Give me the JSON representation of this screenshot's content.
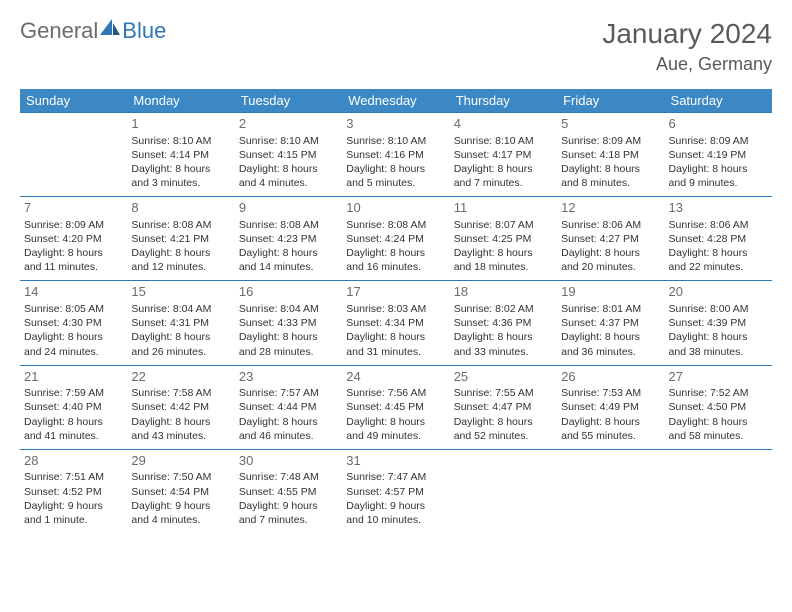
{
  "brand": {
    "part1": "General",
    "part2": "Blue"
  },
  "title": "January 2024",
  "location": "Aue, Germany",
  "colors": {
    "header_bg": "#3b88c4",
    "border": "#2f77b5",
    "text": "#333333",
    "muted": "#6b6b6b",
    "white": "#ffffff"
  },
  "weekdays": [
    "Sunday",
    "Monday",
    "Tuesday",
    "Wednesday",
    "Thursday",
    "Friday",
    "Saturday"
  ],
  "weeks": [
    [
      null,
      {
        "n": "1",
        "sr": "Sunrise: 8:10 AM",
        "ss": "Sunset: 4:14 PM",
        "d1": "Daylight: 8 hours",
        "d2": "and 3 minutes."
      },
      {
        "n": "2",
        "sr": "Sunrise: 8:10 AM",
        "ss": "Sunset: 4:15 PM",
        "d1": "Daylight: 8 hours",
        "d2": "and 4 minutes."
      },
      {
        "n": "3",
        "sr": "Sunrise: 8:10 AM",
        "ss": "Sunset: 4:16 PM",
        "d1": "Daylight: 8 hours",
        "d2": "and 5 minutes."
      },
      {
        "n": "4",
        "sr": "Sunrise: 8:10 AM",
        "ss": "Sunset: 4:17 PM",
        "d1": "Daylight: 8 hours",
        "d2": "and 7 minutes."
      },
      {
        "n": "5",
        "sr": "Sunrise: 8:09 AM",
        "ss": "Sunset: 4:18 PM",
        "d1": "Daylight: 8 hours",
        "d2": "and 8 minutes."
      },
      {
        "n": "6",
        "sr": "Sunrise: 8:09 AM",
        "ss": "Sunset: 4:19 PM",
        "d1": "Daylight: 8 hours",
        "d2": "and 9 minutes."
      }
    ],
    [
      {
        "n": "7",
        "sr": "Sunrise: 8:09 AM",
        "ss": "Sunset: 4:20 PM",
        "d1": "Daylight: 8 hours",
        "d2": "and 11 minutes."
      },
      {
        "n": "8",
        "sr": "Sunrise: 8:08 AM",
        "ss": "Sunset: 4:21 PM",
        "d1": "Daylight: 8 hours",
        "d2": "and 12 minutes."
      },
      {
        "n": "9",
        "sr": "Sunrise: 8:08 AM",
        "ss": "Sunset: 4:23 PM",
        "d1": "Daylight: 8 hours",
        "d2": "and 14 minutes."
      },
      {
        "n": "10",
        "sr": "Sunrise: 8:08 AM",
        "ss": "Sunset: 4:24 PM",
        "d1": "Daylight: 8 hours",
        "d2": "and 16 minutes."
      },
      {
        "n": "11",
        "sr": "Sunrise: 8:07 AM",
        "ss": "Sunset: 4:25 PM",
        "d1": "Daylight: 8 hours",
        "d2": "and 18 minutes."
      },
      {
        "n": "12",
        "sr": "Sunrise: 8:06 AM",
        "ss": "Sunset: 4:27 PM",
        "d1": "Daylight: 8 hours",
        "d2": "and 20 minutes."
      },
      {
        "n": "13",
        "sr": "Sunrise: 8:06 AM",
        "ss": "Sunset: 4:28 PM",
        "d1": "Daylight: 8 hours",
        "d2": "and 22 minutes."
      }
    ],
    [
      {
        "n": "14",
        "sr": "Sunrise: 8:05 AM",
        "ss": "Sunset: 4:30 PM",
        "d1": "Daylight: 8 hours",
        "d2": "and 24 minutes."
      },
      {
        "n": "15",
        "sr": "Sunrise: 8:04 AM",
        "ss": "Sunset: 4:31 PM",
        "d1": "Daylight: 8 hours",
        "d2": "and 26 minutes."
      },
      {
        "n": "16",
        "sr": "Sunrise: 8:04 AM",
        "ss": "Sunset: 4:33 PM",
        "d1": "Daylight: 8 hours",
        "d2": "and 28 minutes."
      },
      {
        "n": "17",
        "sr": "Sunrise: 8:03 AM",
        "ss": "Sunset: 4:34 PM",
        "d1": "Daylight: 8 hours",
        "d2": "and 31 minutes."
      },
      {
        "n": "18",
        "sr": "Sunrise: 8:02 AM",
        "ss": "Sunset: 4:36 PM",
        "d1": "Daylight: 8 hours",
        "d2": "and 33 minutes."
      },
      {
        "n": "19",
        "sr": "Sunrise: 8:01 AM",
        "ss": "Sunset: 4:37 PM",
        "d1": "Daylight: 8 hours",
        "d2": "and 36 minutes."
      },
      {
        "n": "20",
        "sr": "Sunrise: 8:00 AM",
        "ss": "Sunset: 4:39 PM",
        "d1": "Daylight: 8 hours",
        "d2": "and 38 minutes."
      }
    ],
    [
      {
        "n": "21",
        "sr": "Sunrise: 7:59 AM",
        "ss": "Sunset: 4:40 PM",
        "d1": "Daylight: 8 hours",
        "d2": "and 41 minutes."
      },
      {
        "n": "22",
        "sr": "Sunrise: 7:58 AM",
        "ss": "Sunset: 4:42 PM",
        "d1": "Daylight: 8 hours",
        "d2": "and 43 minutes."
      },
      {
        "n": "23",
        "sr": "Sunrise: 7:57 AM",
        "ss": "Sunset: 4:44 PM",
        "d1": "Daylight: 8 hours",
        "d2": "and 46 minutes."
      },
      {
        "n": "24",
        "sr": "Sunrise: 7:56 AM",
        "ss": "Sunset: 4:45 PM",
        "d1": "Daylight: 8 hours",
        "d2": "and 49 minutes."
      },
      {
        "n": "25",
        "sr": "Sunrise: 7:55 AM",
        "ss": "Sunset: 4:47 PM",
        "d1": "Daylight: 8 hours",
        "d2": "and 52 minutes."
      },
      {
        "n": "26",
        "sr": "Sunrise: 7:53 AM",
        "ss": "Sunset: 4:49 PM",
        "d1": "Daylight: 8 hours",
        "d2": "and 55 minutes."
      },
      {
        "n": "27",
        "sr": "Sunrise: 7:52 AM",
        "ss": "Sunset: 4:50 PM",
        "d1": "Daylight: 8 hours",
        "d2": "and 58 minutes."
      }
    ],
    [
      {
        "n": "28",
        "sr": "Sunrise: 7:51 AM",
        "ss": "Sunset: 4:52 PM",
        "d1": "Daylight: 9 hours",
        "d2": "and 1 minute."
      },
      {
        "n": "29",
        "sr": "Sunrise: 7:50 AM",
        "ss": "Sunset: 4:54 PM",
        "d1": "Daylight: 9 hours",
        "d2": "and 4 minutes."
      },
      {
        "n": "30",
        "sr": "Sunrise: 7:48 AM",
        "ss": "Sunset: 4:55 PM",
        "d1": "Daylight: 9 hours",
        "d2": "and 7 minutes."
      },
      {
        "n": "31",
        "sr": "Sunrise: 7:47 AM",
        "ss": "Sunset: 4:57 PM",
        "d1": "Daylight: 9 hours",
        "d2": "and 10 minutes."
      },
      null,
      null,
      null
    ]
  ]
}
